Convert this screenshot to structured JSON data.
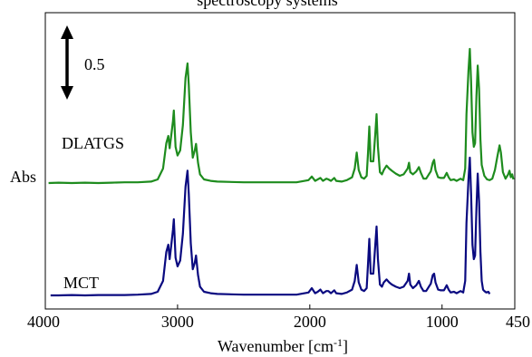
{
  "chart_data": {
    "type": "line",
    "title": "spectroscopy systems",
    "xlabel": "Wavenumber [cm",
    "xlabel_sup": "-1",
    "xlabel_close": "]",
    "ylabel": "Abs",
    "xlim": [
      4000,
      450
    ],
    "x_reversed": true,
    "grid": false,
    "x_ticks": [
      {
        "value": 4000,
        "label": "4000"
      },
      {
        "value": 3000,
        "label": "3000"
      },
      {
        "value": 2000,
        "label": "2000"
      },
      {
        "value": 1000,
        "label": "1000"
      },
      {
        "value": 450,
        "label": "450"
      }
    ],
    "scale_bar": {
      "label": "0.5",
      "value": 0.5
    },
    "series": [
      {
        "name": "DLATGS",
        "color": "#1e8c1e",
        "offset": 1.55,
        "points": [
          [
            3975,
            0.0
          ],
          [
            3900,
            0.005
          ],
          [
            3800,
            0.0
          ],
          [
            3700,
            0.005
          ],
          [
            3600,
            0.0
          ],
          [
            3500,
            0.005
          ],
          [
            3400,
            0.01
          ],
          [
            3300,
            0.01
          ],
          [
            3200,
            0.02
          ],
          [
            3150,
            0.05
          ],
          [
            3110,
            0.2
          ],
          [
            3085,
            0.55
          ],
          [
            3070,
            0.65
          ],
          [
            3060,
            0.48
          ],
          [
            3050,
            0.62
          ],
          [
            3035,
            0.85
          ],
          [
            3028,
            1.0
          ],
          [
            3015,
            0.5
          ],
          [
            3000,
            0.38
          ],
          [
            2980,
            0.45
          ],
          [
            2960,
            0.8
          ],
          [
            2940,
            1.45
          ],
          [
            2925,
            1.65
          ],
          [
            2915,
            1.35
          ],
          [
            2900,
            0.7
          ],
          [
            2885,
            0.35
          ],
          [
            2870,
            0.45
          ],
          [
            2860,
            0.54
          ],
          [
            2845,
            0.28
          ],
          [
            2830,
            0.12
          ],
          [
            2800,
            0.05
          ],
          [
            2750,
            0.03
          ],
          [
            2700,
            0.02
          ],
          [
            2500,
            0.01
          ],
          [
            2300,
            0.01
          ],
          [
            2100,
            0.01
          ],
          [
            2010,
            0.04
          ],
          [
            1985,
            0.09
          ],
          [
            1960,
            0.03
          ],
          [
            1940,
            0.05
          ],
          [
            1920,
            0.07
          ],
          [
            1900,
            0.03
          ],
          [
            1875,
            0.06
          ],
          [
            1860,
            0.05
          ],
          [
            1840,
            0.03
          ],
          [
            1815,
            0.07
          ],
          [
            1800,
            0.03
          ],
          [
            1760,
            0.02
          ],
          [
            1720,
            0.04
          ],
          [
            1680,
            0.08
          ],
          [
            1660,
            0.2
          ],
          [
            1645,
            0.42
          ],
          [
            1630,
            0.18
          ],
          [
            1610,
            0.08
          ],
          [
            1590,
            0.06
          ],
          [
            1570,
            0.1
          ],
          [
            1560,
            0.4
          ],
          [
            1550,
            0.78
          ],
          [
            1540,
            0.3
          ],
          [
            1520,
            0.3
          ],
          [
            1505,
            0.68
          ],
          [
            1495,
            0.95
          ],
          [
            1485,
            0.5
          ],
          [
            1470,
            0.15
          ],
          [
            1455,
            0.12
          ],
          [
            1440,
            0.18
          ],
          [
            1420,
            0.24
          ],
          [
            1400,
            0.2
          ],
          [
            1380,
            0.17
          ],
          [
            1350,
            0.13
          ],
          [
            1320,
            0.1
          ],
          [
            1290,
            0.12
          ],
          [
            1260,
            0.2
          ],
          [
            1250,
            0.28
          ],
          [
            1240,
            0.15
          ],
          [
            1220,
            0.12
          ],
          [
            1195,
            0.16
          ],
          [
            1175,
            0.22
          ],
          [
            1160,
            0.14
          ],
          [
            1140,
            0.06
          ],
          [
            1120,
            0.06
          ],
          [
            1100,
            0.12
          ],
          [
            1085,
            0.16
          ],
          [
            1070,
            0.28
          ],
          [
            1060,
            0.32
          ],
          [
            1050,
            0.18
          ],
          [
            1030,
            0.08
          ],
          [
            1010,
            0.07
          ],
          [
            985,
            0.07
          ],
          [
            965,
            0.14
          ],
          [
            950,
            0.08
          ],
          [
            935,
            0.04
          ],
          [
            910,
            0.05
          ],
          [
            890,
            0.03
          ],
          [
            860,
            0.06
          ],
          [
            840,
            0.04
          ],
          [
            825,
            0.2
          ],
          [
            815,
            0.95
          ],
          [
            800,
            1.55
          ],
          [
            790,
            1.85
          ],
          [
            780,
            1.4
          ],
          [
            770,
            0.7
          ],
          [
            760,
            0.5
          ],
          [
            750,
            0.55
          ],
          [
            740,
            1.2
          ],
          [
            730,
            1.62
          ],
          [
            720,
            1.3
          ],
          [
            710,
            0.6
          ],
          [
            700,
            0.25
          ],
          [
            680,
            0.1
          ],
          [
            660,
            0.05
          ],
          [
            640,
            0.04
          ],
          [
            620,
            0.06
          ],
          [
            600,
            0.18
          ],
          [
            580,
            0.38
          ],
          [
            565,
            0.52
          ],
          [
            555,
            0.42
          ],
          [
            540,
            0.15
          ],
          [
            520,
            0.06
          ],
          [
            500,
            0.12
          ],
          [
            490,
            0.17
          ],
          [
            480,
            0.08
          ],
          [
            470,
            0.12
          ],
          [
            460,
            0.05
          ]
        ]
      },
      {
        "name": "MCT",
        "color": "#0a0a80",
        "offset": 0.0,
        "points": [
          [
            3960,
            0.0
          ],
          [
            3900,
            0.0
          ],
          [
            3800,
            0.005
          ],
          [
            3700,
            0.0
          ],
          [
            3600,
            0.005
          ],
          [
            3500,
            0.005
          ],
          [
            3400,
            0.005
          ],
          [
            3300,
            0.01
          ],
          [
            3200,
            0.02
          ],
          [
            3150,
            0.05
          ],
          [
            3110,
            0.2
          ],
          [
            3085,
            0.6
          ],
          [
            3070,
            0.7
          ],
          [
            3060,
            0.5
          ],
          [
            3050,
            0.65
          ],
          [
            3035,
            0.9
          ],
          [
            3028,
            1.05
          ],
          [
            3015,
            0.52
          ],
          [
            3000,
            0.4
          ],
          [
            2980,
            0.48
          ],
          [
            2960,
            0.85
          ],
          [
            2940,
            1.5
          ],
          [
            2925,
            1.72
          ],
          [
            2915,
            1.4
          ],
          [
            2900,
            0.72
          ],
          [
            2885,
            0.36
          ],
          [
            2870,
            0.45
          ],
          [
            2860,
            0.55
          ],
          [
            2845,
            0.28
          ],
          [
            2830,
            0.12
          ],
          [
            2800,
            0.05
          ],
          [
            2750,
            0.03
          ],
          [
            2700,
            0.02
          ],
          [
            2500,
            0.01
          ],
          [
            2300,
            0.01
          ],
          [
            2100,
            0.01
          ],
          [
            2010,
            0.04
          ],
          [
            1985,
            0.1
          ],
          [
            1960,
            0.03
          ],
          [
            1940,
            0.05
          ],
          [
            1920,
            0.08
          ],
          [
            1900,
            0.03
          ],
          [
            1875,
            0.06
          ],
          [
            1860,
            0.06
          ],
          [
            1840,
            0.03
          ],
          [
            1815,
            0.07
          ],
          [
            1800,
            0.03
          ],
          [
            1760,
            0.02
          ],
          [
            1720,
            0.04
          ],
          [
            1680,
            0.08
          ],
          [
            1660,
            0.2
          ],
          [
            1645,
            0.42
          ],
          [
            1630,
            0.18
          ],
          [
            1610,
            0.08
          ],
          [
            1590,
            0.06
          ],
          [
            1570,
            0.1
          ],
          [
            1560,
            0.42
          ],
          [
            1550,
            0.78
          ],
          [
            1540,
            0.3
          ],
          [
            1520,
            0.3
          ],
          [
            1505,
            0.7
          ],
          [
            1495,
            0.95
          ],
          [
            1485,
            0.5
          ],
          [
            1470,
            0.15
          ],
          [
            1455,
            0.12
          ],
          [
            1440,
            0.18
          ],
          [
            1420,
            0.22
          ],
          [
            1400,
            0.18
          ],
          [
            1380,
            0.15
          ],
          [
            1350,
            0.12
          ],
          [
            1320,
            0.1
          ],
          [
            1290,
            0.12
          ],
          [
            1260,
            0.2
          ],
          [
            1250,
            0.3
          ],
          [
            1240,
            0.15
          ],
          [
            1220,
            0.1
          ],
          [
            1195,
            0.14
          ],
          [
            1175,
            0.2
          ],
          [
            1160,
            0.12
          ],
          [
            1140,
            0.06
          ],
          [
            1120,
            0.06
          ],
          [
            1100,
            0.12
          ],
          [
            1085,
            0.16
          ],
          [
            1070,
            0.28
          ],
          [
            1060,
            0.3
          ],
          [
            1050,
            0.18
          ],
          [
            1030,
            0.08
          ],
          [
            1010,
            0.07
          ],
          [
            985,
            0.07
          ],
          [
            965,
            0.14
          ],
          [
            950,
            0.08
          ],
          [
            935,
            0.04
          ],
          [
            910,
            0.05
          ],
          [
            890,
            0.03
          ],
          [
            860,
            0.06
          ],
          [
            840,
            0.04
          ],
          [
            825,
            0.2
          ],
          [
            815,
            1.0
          ],
          [
            800,
            1.6
          ],
          [
            790,
            1.9
          ],
          [
            780,
            1.4
          ],
          [
            770,
            0.7
          ],
          [
            760,
            0.5
          ],
          [
            750,
            0.55
          ],
          [
            740,
            1.2
          ],
          [
            730,
            1.68
          ],
          [
            720,
            1.3
          ],
          [
            710,
            0.6
          ],
          [
            700,
            0.2
          ],
          [
            690,
            0.08
          ],
          [
            680,
            0.06
          ],
          [
            665,
            0.04
          ],
          [
            650,
            0.05
          ],
          [
            640,
            0.02
          ]
        ]
      }
    ]
  }
}
